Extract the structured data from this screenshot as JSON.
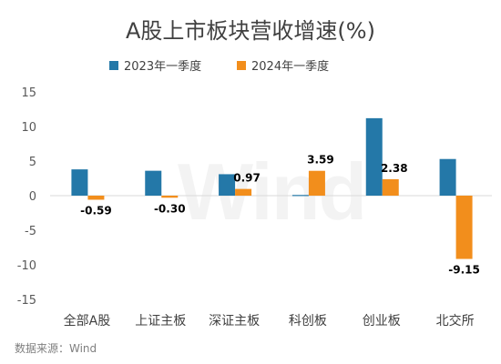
{
  "chart_data": {
    "type": "bar",
    "title": "A股上市板块营收增速(%)",
    "categories": [
      "全部A股",
      "上证主板",
      "深证主板",
      "科创板",
      "创业板",
      "北交所"
    ],
    "series": [
      {
        "name": "2023年一季度",
        "color": "#2478a8",
        "values": [
          3.8,
          3.6,
          3.1,
          0.1,
          11.2,
          5.3
        ]
      },
      {
        "name": "2024年一季度",
        "color": "#f28e1c",
        "values": [
          -0.59,
          -0.3,
          0.97,
          3.59,
          2.38,
          -9.15
        ],
        "data_labels": [
          "-0.59",
          "-0.30",
          "0.97",
          "3.59",
          "2.38",
          "-9.15"
        ]
      }
    ],
    "ylim": [
      -15,
      15
    ],
    "yticks": [
      15,
      10,
      5,
      0,
      -5,
      -10,
      -15
    ],
    "grid": false,
    "legend_position": "top-center",
    "source": "数据来源：Wind"
  },
  "watermark": "Wind"
}
